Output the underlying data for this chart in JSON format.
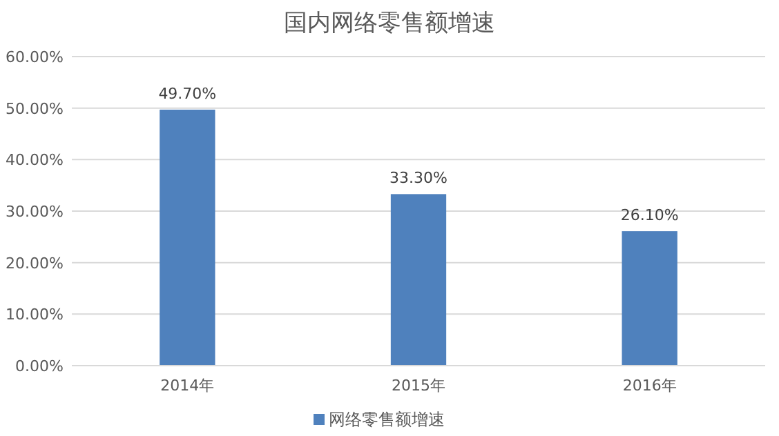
{
  "chart_data": {
    "type": "bar",
    "title": "国内网络零售额增速",
    "categories": [
      "2014年",
      "2015年",
      "2016年"
    ],
    "series": [
      {
        "name": "网络零售额增速",
        "color": "#4f81bd",
        "values": [
          49.7,
          33.3,
          26.1
        ],
        "value_labels": [
          "49.70%",
          "33.30%",
          "26.10%"
        ]
      }
    ],
    "ylim": [
      0,
      60
    ],
    "yticks": [
      {
        "value": 0,
        "label": "0.00%"
      },
      {
        "value": 10,
        "label": "10.00%"
      },
      {
        "value": 20,
        "label": "20.00%"
      },
      {
        "value": 30,
        "label": "30.00%"
      },
      {
        "value": 40,
        "label": "40.00%"
      },
      {
        "value": 50,
        "label": "50.00%"
      },
      {
        "value": 60,
        "label": "60.00%"
      }
    ],
    "grid": "y",
    "legend": "bottom"
  }
}
